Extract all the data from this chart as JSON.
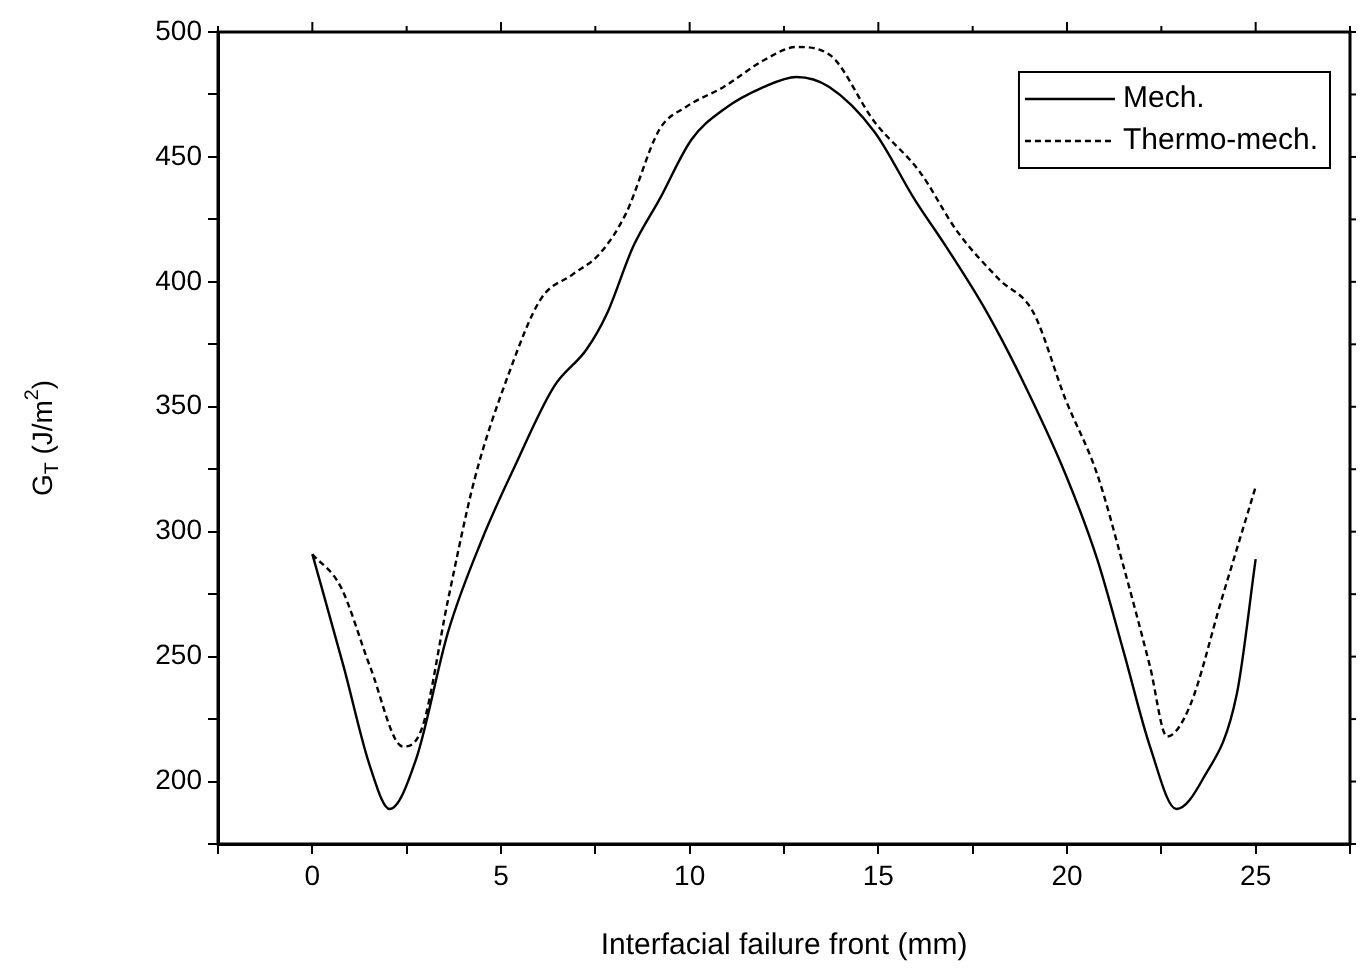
{
  "chart_data": {
    "type": "line",
    "xlabel": "Interfacial failure front (mm)",
    "ylabel": "G$_{T}$ (J/m$^{2}$)",
    "xlim": [
      -2.5,
      27.5
    ],
    "xticks": [
      {
        "value": -2.5,
        "label": null
      },
      0,
      {
        "value": 2.5,
        "label": null
      },
      5,
      {
        "value": 7.5,
        "label": null
      },
      10,
      {
        "value": 12.5,
        "label": null
      },
      15,
      {
        "value": 17.5,
        "label": null
      },
      20,
      {
        "value": 22.5,
        "label": null
      },
      25,
      {
        "value": 27.5,
        "label": null
      }
    ],
    "ylim": [
      175,
      500
    ],
    "yticks": [
      {
        "value": 175,
        "label": null
      },
      200,
      {
        "value": 225,
        "label": null
      },
      250,
      {
        "value": 275,
        "label": null
      },
      300,
      {
        "value": 325,
        "label": null
      },
      350,
      {
        "value": 375,
        "label": null
      },
      400,
      {
        "value": 425,
        "label": null
      },
      450,
      {
        "value": 475,
        "label": null
      },
      500
    ],
    "legend": "top right",
    "marker": "none",
    "grid": false,
    "series": [
      {
        "name": "Mech.",
        "color": "#000000",
        "line_style": "solid",
        "x": [
          0,
          0.83,
          1.53,
          2.05,
          2.75,
          3.6,
          4.5,
          5.36,
          6.4,
          7.27,
          7.8,
          8.5,
          9.2,
          10.05,
          10.9,
          11.97,
          12.83,
          13.7,
          14.9,
          15.96,
          16.8,
          17.87,
          18.74,
          19.96,
          20.8,
          21.5,
          22.2,
          22.9,
          23.6,
          24.5,
          25
        ],
        "values": [
          291,
          246,
          206,
          189,
          209,
          260,
          297,
          326,
          358,
          373,
          387,
          414,
          433,
          457,
          469,
          478,
          482,
          478,
          460,
          433,
          414,
          388,
          363,
          323,
          289,
          252,
          214,
          189,
          201,
          235,
          289
        ]
      },
      {
        "name": "Thermo-mech.",
        "color": "#000000",
        "line_style": "dashed",
        "x": [
          0,
          0.75,
          1.53,
          2.4,
          2.92,
          3.6,
          4.3,
          5.2,
          6.05,
          6.9,
          7.6,
          8.3,
          9.2,
          9.9,
          10.9,
          12,
          12.83,
          13.7,
          14.9,
          16.1,
          17.1,
          18.2,
          19.1,
          19.96,
          20.8,
          21.5,
          22.2,
          22.65,
          23.25,
          24.1,
          25
        ],
        "values": [
          291,
          278,
          246,
          214,
          222,
          273,
          321,
          363,
          393,
          403,
          411,
          427,
          461,
          470,
          478,
          489,
          494,
          491,
          464,
          444,
          420,
          401,
          388,
          353,
          323,
          286,
          246,
          218,
          230,
          273,
          318
        ]
      }
    ]
  }
}
